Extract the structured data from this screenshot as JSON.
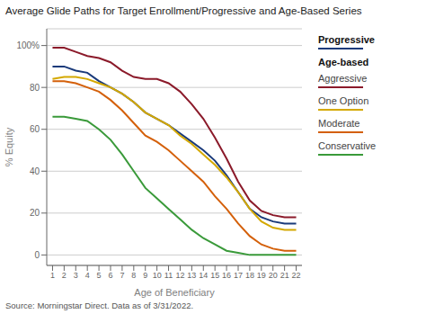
{
  "chart_data": {
    "type": "line",
    "title": "Average Glide Paths for Target Enrollment/Progressive and Age-Based Series",
    "x_label": "Age of Beneficiary",
    "y_label": "% Equity",
    "source": "Source: Morningstar Direct. Data as of 3/31/2022.",
    "annotations": [
      "Age-based"
    ],
    "x": [
      1,
      2,
      3,
      4,
      5,
      6,
      7,
      8,
      9,
      10,
      11,
      12,
      13,
      14,
      15,
      16,
      17,
      18,
      19,
      20,
      21,
      22
    ],
    "series": [
      {
        "name": "Progressive",
        "color": "#1a3a7a",
        "values": [
          90,
          90,
          88,
          87,
          83,
          80,
          77,
          73,
          68,
          65,
          62,
          58,
          54,
          50,
          45,
          38,
          30,
          22,
          18,
          16,
          15,
          15
        ]
      },
      {
        "name": "Aggressive",
        "color": "#8b1a2a",
        "values": [
          99,
          99,
          97,
          95,
          94,
          92,
          88,
          85,
          84,
          84,
          82,
          78,
          72,
          65,
          56,
          46,
          35,
          26,
          21,
          19,
          18,
          18
        ]
      },
      {
        "name": "One Option",
        "color": "#d4a800",
        "values": [
          84,
          85,
          85,
          84,
          82,
          80,
          77,
          73,
          68,
          65,
          62,
          57,
          53,
          48,
          43,
          37,
          30,
          22,
          16,
          13,
          12,
          12
        ]
      },
      {
        "name": "Moderate",
        "color": "#d4600a",
        "values": [
          83,
          83,
          82,
          80,
          78,
          74,
          69,
          63,
          57,
          54,
          50,
          45,
          40,
          35,
          28,
          22,
          15,
          9,
          5,
          3,
          2,
          2
        ]
      },
      {
        "name": "Conservative",
        "color": "#3a9a3a",
        "values": [
          66,
          66,
          65,
          64,
          60,
          55,
          48,
          40,
          32,
          27,
          22,
          17,
          12,
          8,
          5,
          2,
          1,
          0,
          0,
          0,
          0,
          0
        ]
      }
    ],
    "xlim": [
      0.5,
      22.5
    ],
    "xticks": [
      1,
      2,
      3,
      4,
      5,
      6,
      7,
      8,
      9,
      10,
      11,
      12,
      13,
      14,
      15,
      16,
      17,
      18,
      19,
      20,
      21,
      22
    ],
    "ylim": [
      -5,
      108
    ],
    "yticks": [
      0,
      20,
      40,
      60,
      80,
      {
        "value": 100,
        "label": "100%"
      }
    ],
    "grid": true,
    "legend": "right"
  }
}
